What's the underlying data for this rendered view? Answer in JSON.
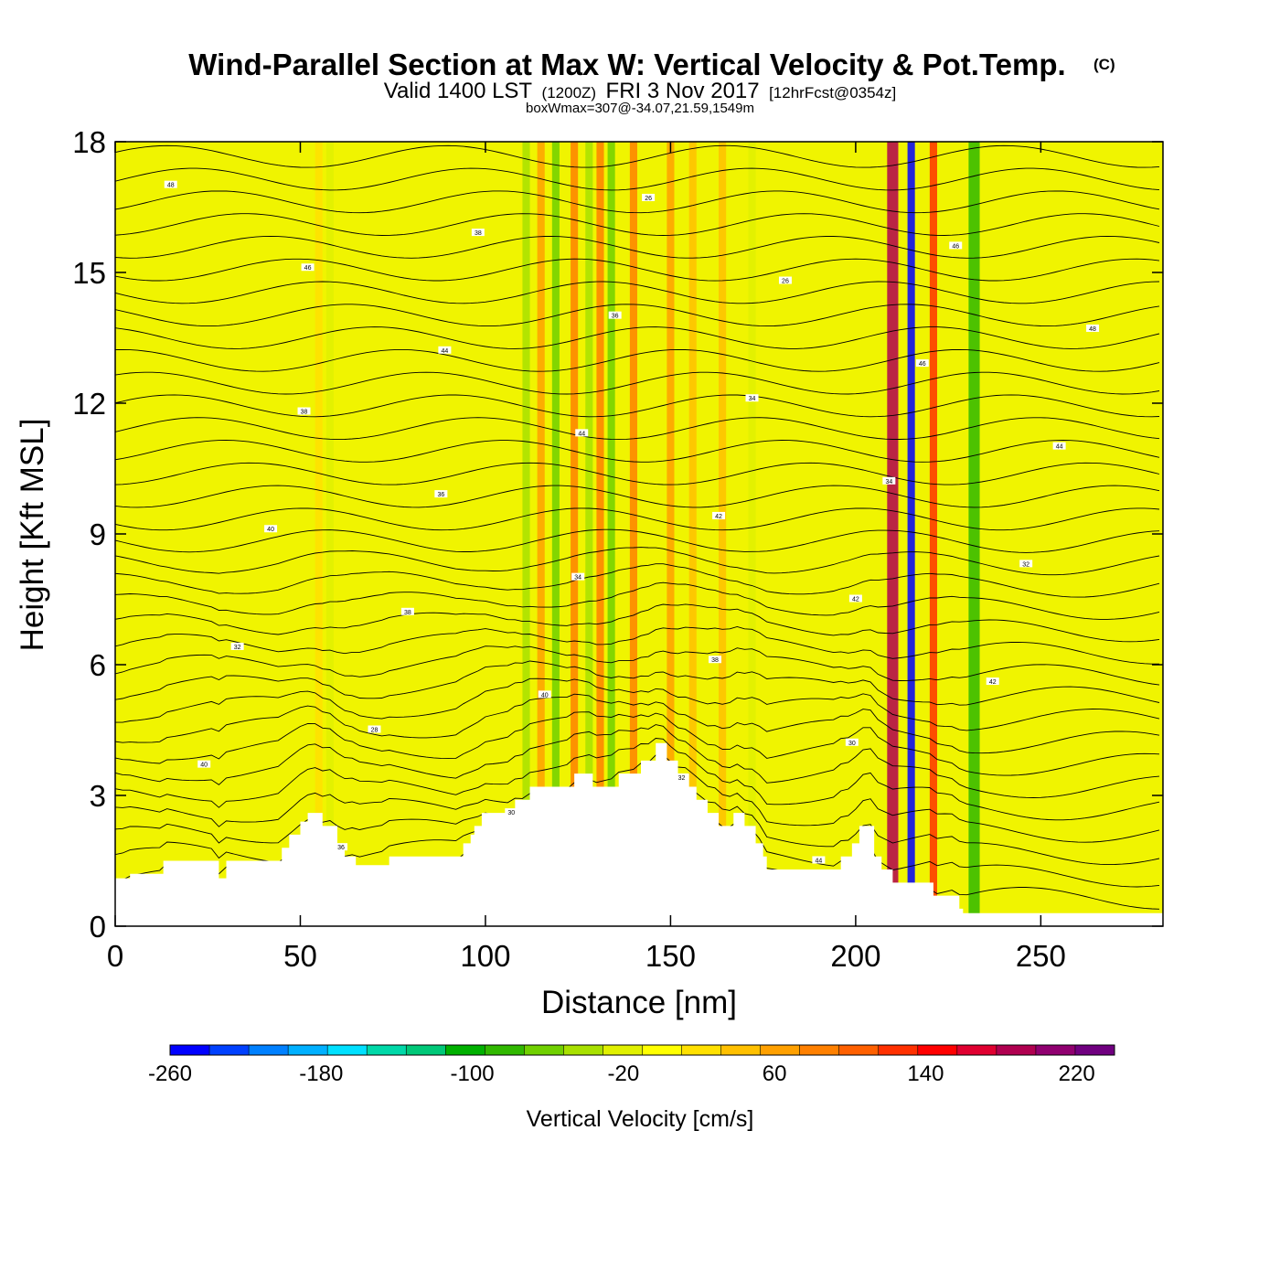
{
  "chart_data": {
    "type": "heatmap",
    "title": "Wind-Parallel Section at Max W: Vertical Velocity & Pot.Temp.",
    "title_mark": "(C)",
    "subtitle": {
      "main_a": "Valid 1400 LST",
      "zulu": "(1200Z)",
      "main_b": "FRI 3 Nov 2017",
      "fcst": "[12hrFcst@0354z]"
    },
    "meta": "boxWmax=307@-34.07,21.59,1549m",
    "xlabel": "Distance [nm]",
    "ylabel": "Height [Kft MSL]",
    "xlim": [
      0,
      283
    ],
    "ylim": [
      0,
      18
    ],
    "x_ticks": [
      "0",
      "50",
      "100",
      "150",
      "200",
      "250"
    ],
    "y_ticks": [
      "0",
      "3",
      "6",
      "9",
      "12",
      "15",
      "18"
    ],
    "colorbar": {
      "label": "Vertical Velocity [cm/s]",
      "range": [
        -260,
        240
      ],
      "step": 20,
      "tick_labels": [
        "-260",
        "-180",
        "-100",
        "-20",
        "60",
        "140",
        "220"
      ],
      "colors": [
        "#0000ff",
        "#0040ff",
        "#0080ff",
        "#00b0ff",
        "#00e0ff",
        "#00d8a8",
        "#00c878",
        "#00b000",
        "#30b800",
        "#70d000",
        "#a8e000",
        "#e0f000",
        "#ffff00",
        "#ffe000",
        "#ffc000",
        "#ffa000",
        "#ff8000",
        "#ff6000",
        "#ff3000",
        "#ff0000",
        "#e00030",
        "#b00050",
        "#900070",
        "#700080"
      ]
    },
    "vertical_velocity_bands": [
      {
        "x": 55,
        "w": 2,
        "value": 10
      },
      {
        "x": 58,
        "w": 2,
        "value": -40
      },
      {
        "x": 111,
        "w": 2,
        "value": -60
      },
      {
        "x": 115,
        "w": 2,
        "value": 50
      },
      {
        "x": 119,
        "w": 2,
        "value": -70
      },
      {
        "x": 124,
        "w": 2,
        "value": 60
      },
      {
        "x": 128,
        "w": 2,
        "value": -60
      },
      {
        "x": 131,
        "w": 2,
        "value": 70
      },
      {
        "x": 134,
        "w": 2,
        "value": -80
      },
      {
        "x": 140,
        "w": 2,
        "value": 60
      },
      {
        "x": 150,
        "w": 2,
        "value": 50
      },
      {
        "x": 156,
        "w": 2,
        "value": 30
      },
      {
        "x": 164,
        "w": 2,
        "value": 30
      },
      {
        "x": 172,
        "w": 2,
        "value": -30
      },
      {
        "x": 210,
        "w": 3,
        "value": 160
      },
      {
        "x": 215,
        "w": 2,
        "value": -260
      },
      {
        "x": 221,
        "w": 2,
        "value": 100
      },
      {
        "x": 232,
        "w": 3,
        "value": -100
      }
    ],
    "terrain_kft": [
      [
        0,
        1.1
      ],
      [
        4,
        1.1
      ],
      [
        4,
        1.2
      ],
      [
        13,
        1.2
      ],
      [
        13,
        1.5
      ],
      [
        28,
        1.5
      ],
      [
        28,
        1.1
      ],
      [
        30,
        1.1
      ],
      [
        30,
        1.5
      ],
      [
        45,
        1.5
      ],
      [
        45,
        1.8
      ],
      [
        47,
        1.8
      ],
      [
        47,
        2.1
      ],
      [
        50,
        2.1
      ],
      [
        50,
        2.4
      ],
      [
        52,
        2.4
      ],
      [
        52,
        2.6
      ],
      [
        56,
        2.6
      ],
      [
        56,
        2.3
      ],
      [
        60,
        2.3
      ],
      [
        60,
        1.9
      ],
      [
        62,
        1.9
      ],
      [
        62,
        1.6
      ],
      [
        65,
        1.6
      ],
      [
        65,
        1.4
      ],
      [
        74,
        1.4
      ],
      [
        74,
        1.6
      ],
      [
        94,
        1.6
      ],
      [
        94,
        1.9
      ],
      [
        96,
        1.9
      ],
      [
        96,
        2.1
      ],
      [
        97,
        2.1
      ],
      [
        97,
        2.3
      ],
      [
        99,
        2.3
      ],
      [
        99,
        2.6
      ],
      [
        108,
        2.6
      ],
      [
        108,
        2.9
      ],
      [
        112,
        2.9
      ],
      [
        112,
        3.2
      ],
      [
        124,
        3.2
      ],
      [
        124,
        3.5
      ],
      [
        129,
        3.5
      ],
      [
        129,
        3.2
      ],
      [
        136,
        3.2
      ],
      [
        136,
        3.5
      ],
      [
        142,
        3.5
      ],
      [
        142,
        3.8
      ],
      [
        146,
        3.8
      ],
      [
        146,
        4.2
      ],
      [
        149,
        4.2
      ],
      [
        149,
        3.8
      ],
      [
        152,
        3.8
      ],
      [
        152,
        3.5
      ],
      [
        155,
        3.5
      ],
      [
        155,
        3.2
      ],
      [
        157,
        3.2
      ],
      [
        157,
        2.9
      ],
      [
        160,
        2.9
      ],
      [
        160,
        2.6
      ],
      [
        163,
        2.6
      ],
      [
        163,
        2.3
      ],
      [
        167,
        2.3
      ],
      [
        167,
        2.6
      ],
      [
        170,
        2.6
      ],
      [
        170,
        2.3
      ],
      [
        173,
        2.3
      ],
      [
        173,
        1.9
      ],
      [
        175,
        1.9
      ],
      [
        175,
        1.6
      ],
      [
        176,
        1.6
      ],
      [
        176,
        1.3
      ],
      [
        196,
        1.3
      ],
      [
        196,
        1.6
      ],
      [
        199,
        1.6
      ],
      [
        199,
        1.9
      ],
      [
        201,
        1.9
      ],
      [
        201,
        2.3
      ],
      [
        205,
        2.3
      ],
      [
        205,
        1.6
      ],
      [
        207,
        1.6
      ],
      [
        207,
        1.3
      ],
      [
        210,
        1.3
      ],
      [
        210,
        1.0
      ],
      [
        221,
        1.0
      ],
      [
        221,
        0.7
      ],
      [
        228,
        0.7
      ],
      [
        228,
        0.4
      ],
      [
        229,
        0.4
      ],
      [
        229,
        0.3
      ],
      [
        283,
        0.3
      ]
    ],
    "contour_labels": [
      "48",
      "46",
      "44",
      "44",
      "42",
      "42",
      "42",
      "40",
      "36",
      "38",
      "36",
      "34",
      "34",
      "32",
      "32",
      "28",
      "30",
      "26",
      "26",
      "46",
      "44",
      "40",
      "38",
      "40",
      "32",
      "44",
      "46",
      "48",
      "38",
      "36",
      "34",
      "38",
      "30"
    ]
  }
}
